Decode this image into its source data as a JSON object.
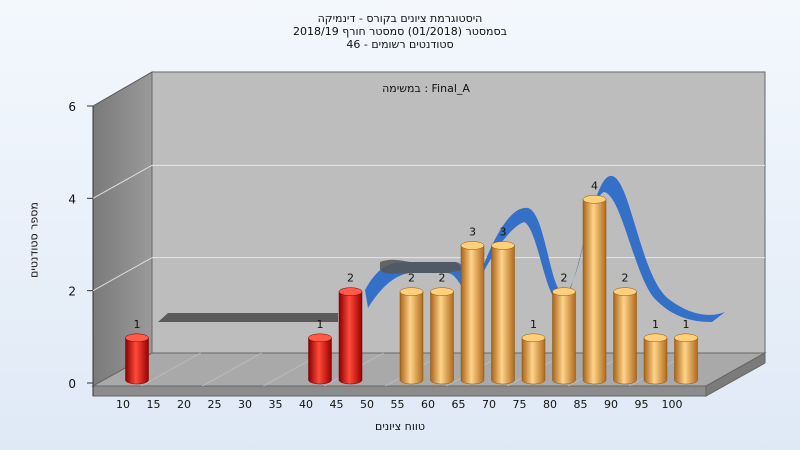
{
  "header": {
    "line1": "היסטוגרמת ציונים בקורס - דינמיקה",
    "line2": "בסמסטר  (01/2018)  סמסטר חורף 2018/19",
    "line3": "סטודנטים רשומים - 46"
  },
  "chart_data": {
    "type": "bar",
    "title": "היסטוגרמת ציונים בקורס - דינמיקה",
    "subtitle": "במשימה : Final_A",
    "xlabel": "טווח ציונים",
    "ylabel": "מספר סטודנטים",
    "ylim": [
      0,
      6
    ],
    "yticks": [
      0,
      2,
      4,
      6
    ],
    "xticks": [
      "10",
      "15",
      "20",
      "25",
      "30",
      "35",
      "40",
      "45",
      "50",
      "55",
      "60",
      "65",
      "70",
      "75",
      "80",
      "85",
      "90",
      "95",
      "100"
    ],
    "grid": true,
    "bars": [
      {
        "x": 10,
        "value": 1,
        "color": "red"
      },
      {
        "x": 40,
        "value": 1,
        "color": "red"
      },
      {
        "x": 45,
        "value": 2,
        "color": "red"
      },
      {
        "x": 55,
        "value": 2,
        "color": "orange"
      },
      {
        "x": 60,
        "value": 2,
        "color": "orange"
      },
      {
        "x": 65,
        "value": 3,
        "color": "orange"
      },
      {
        "x": 70,
        "value": 3,
        "color": "orange"
      },
      {
        "x": 75,
        "value": 1,
        "color": "orange"
      },
      {
        "x": 80,
        "value": 2,
        "color": "orange"
      },
      {
        "x": 85,
        "value": 4,
        "color": "orange"
      },
      {
        "x": 90,
        "value": 2,
        "color": "orange"
      },
      {
        "x": 95,
        "value": 1,
        "color": "orange"
      },
      {
        "x": 100,
        "value": 1,
        "color": "orange"
      }
    ],
    "colors": {
      "fail": "#e01818",
      "pass": "#f0a030",
      "curve": "#2f6fc8",
      "curve_flat": "#555555"
    }
  }
}
